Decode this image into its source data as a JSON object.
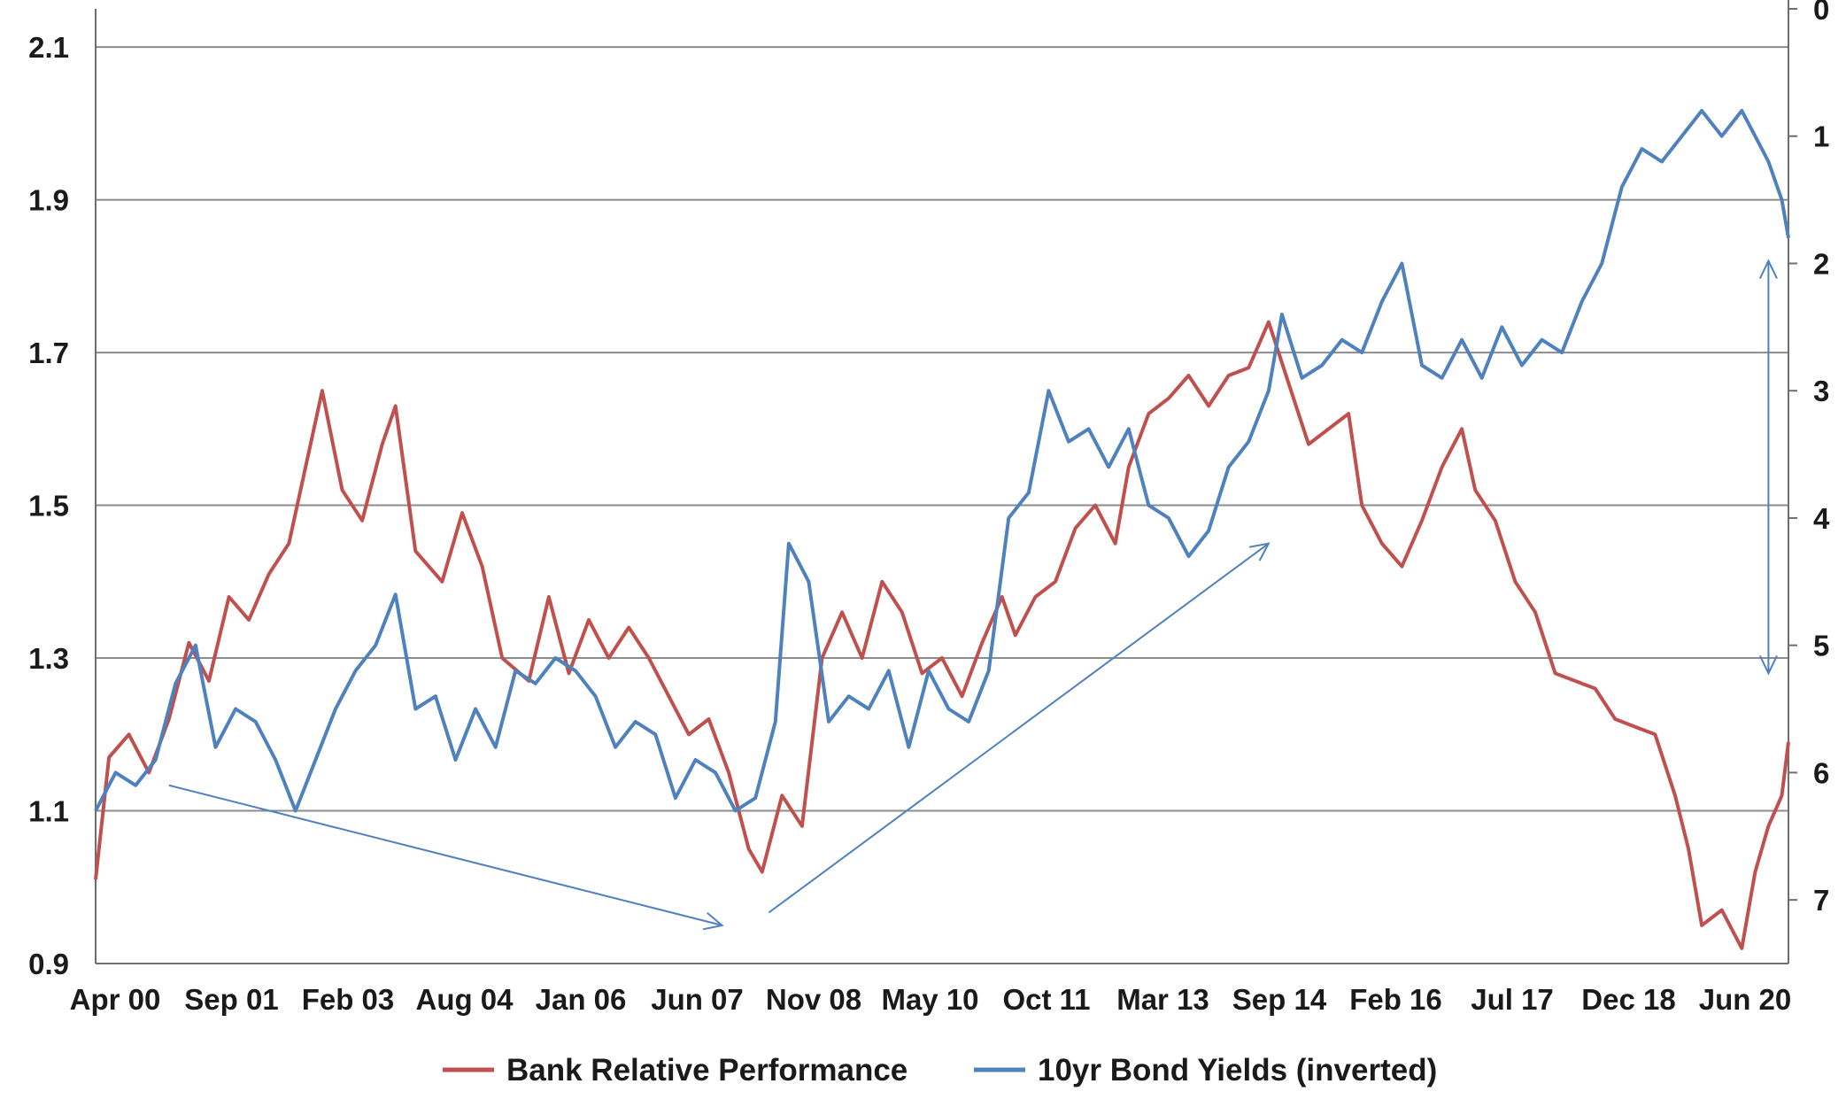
{
  "chart_data": {
    "type": "line",
    "title": "",
    "xlabel": "",
    "ylabel": "",
    "x_tick_labels": [
      "Apr 00",
      "Sep 01",
      "Feb 03",
      "Aug 04",
      "Jan 06",
      "Jun 07",
      "Nov 08",
      "May 10",
      "Oct 11",
      "Mar 13",
      "Sep 14",
      "Feb 16",
      "Jul 17",
      "Dec 18",
      "Jun 20"
    ],
    "xlim": [
      "2000-04",
      "2021-06"
    ],
    "y_left": {
      "ticks": [
        "0.9",
        "1.1",
        "1.3",
        "1.5",
        "1.7",
        "1.9",
        "2.1"
      ],
      "ylim": [
        0.9,
        2.15
      ]
    },
    "y_right": {
      "ticks": [
        "0",
        "1",
        "2",
        "3",
        "4",
        "5",
        "6",
        "7"
      ],
      "ylim": [
        0,
        7.5
      ],
      "inverted": true
    },
    "grid": true,
    "legend_position": "bottom",
    "series": [
      {
        "name": "Bank Relative Performance",
        "axis": "left",
        "color": "#c0504d",
        "points": [
          [
            "2000-04",
            1.01
          ],
          [
            "2000-06",
            1.17
          ],
          [
            "2000-09",
            1.2
          ],
          [
            "2000-12",
            1.15
          ],
          [
            "2001-03",
            1.22
          ],
          [
            "2001-06",
            1.32
          ],
          [
            "2001-09",
            1.27
          ],
          [
            "2001-12",
            1.38
          ],
          [
            "2002-03",
            1.35
          ],
          [
            "2002-06",
            1.41
          ],
          [
            "2002-09",
            1.45
          ],
          [
            "2002-12",
            1.57
          ],
          [
            "2003-02",
            1.65
          ],
          [
            "2003-05",
            1.52
          ],
          [
            "2003-08",
            1.48
          ],
          [
            "2003-11",
            1.58
          ],
          [
            "2004-01",
            1.63
          ],
          [
            "2004-04",
            1.44
          ],
          [
            "2004-08",
            1.4
          ],
          [
            "2004-11",
            1.49
          ],
          [
            "2005-02",
            1.42
          ],
          [
            "2005-05",
            1.3
          ],
          [
            "2005-09",
            1.27
          ],
          [
            "2005-12",
            1.38
          ],
          [
            "2006-03",
            1.28
          ],
          [
            "2006-06",
            1.35
          ],
          [
            "2006-09",
            1.3
          ],
          [
            "2006-12",
            1.34
          ],
          [
            "2007-03",
            1.3
          ],
          [
            "2007-06",
            1.25
          ],
          [
            "2007-09",
            1.2
          ],
          [
            "2007-12",
            1.22
          ],
          [
            "2008-03",
            1.15
          ],
          [
            "2008-06",
            1.05
          ],
          [
            "2008-08",
            1.02
          ],
          [
            "2008-11",
            1.12
          ],
          [
            "2009-02",
            1.08
          ],
          [
            "2009-05",
            1.3
          ],
          [
            "2009-08",
            1.36
          ],
          [
            "2009-11",
            1.3
          ],
          [
            "2010-02",
            1.4
          ],
          [
            "2010-05",
            1.36
          ],
          [
            "2010-08",
            1.28
          ],
          [
            "2010-11",
            1.3
          ],
          [
            "2011-02",
            1.25
          ],
          [
            "2011-05",
            1.32
          ],
          [
            "2011-08",
            1.38
          ],
          [
            "2011-10",
            1.33
          ],
          [
            "2012-01",
            1.38
          ],
          [
            "2012-04",
            1.4
          ],
          [
            "2012-07",
            1.47
          ],
          [
            "2012-10",
            1.5
          ],
          [
            "2013-01",
            1.45
          ],
          [
            "2013-03",
            1.55
          ],
          [
            "2013-06",
            1.62
          ],
          [
            "2013-09",
            1.64
          ],
          [
            "2013-12",
            1.67
          ],
          [
            "2014-03",
            1.63
          ],
          [
            "2014-06",
            1.67
          ],
          [
            "2014-09",
            1.68
          ],
          [
            "2014-12",
            1.74
          ],
          [
            "2015-03",
            1.66
          ],
          [
            "2015-06",
            1.58
          ],
          [
            "2015-09",
            1.6
          ],
          [
            "2015-12",
            1.62
          ],
          [
            "2016-02",
            1.5
          ],
          [
            "2016-05",
            1.45
          ],
          [
            "2016-08",
            1.42
          ],
          [
            "2016-11",
            1.48
          ],
          [
            "2017-02",
            1.55
          ],
          [
            "2017-05",
            1.6
          ],
          [
            "2017-07",
            1.52
          ],
          [
            "2017-10",
            1.48
          ],
          [
            "2018-01",
            1.4
          ],
          [
            "2018-04",
            1.36
          ],
          [
            "2018-07",
            1.28
          ],
          [
            "2018-10",
            1.27
          ],
          [
            "2019-01",
            1.26
          ],
          [
            "2019-04",
            1.22
          ],
          [
            "2019-07",
            1.21
          ],
          [
            "2019-10",
            1.2
          ],
          [
            "2020-01",
            1.12
          ],
          [
            "2020-03",
            1.05
          ],
          [
            "2020-05",
            0.95
          ],
          [
            "2020-08",
            0.97
          ],
          [
            "2020-11",
            0.92
          ],
          [
            "2021-01",
            1.02
          ],
          [
            "2021-03",
            1.08
          ],
          [
            "2021-05",
            1.12
          ],
          [
            "2021-06",
            1.19
          ]
        ]
      },
      {
        "name": "10yr Bond Yields (inverted)",
        "axis": "right",
        "color": "#4f81bd",
        "points": [
          [
            "2000-04",
            6.3
          ],
          [
            "2000-07",
            6.0
          ],
          [
            "2000-10",
            6.1
          ],
          [
            "2001-01",
            5.9
          ],
          [
            "2001-04",
            5.3
          ],
          [
            "2001-07",
            5.0
          ],
          [
            "2001-10",
            5.8
          ],
          [
            "2002-01",
            5.5
          ],
          [
            "2002-04",
            5.6
          ],
          [
            "2002-07",
            5.9
          ],
          [
            "2002-10",
            6.3
          ],
          [
            "2003-01",
            5.9
          ],
          [
            "2003-04",
            5.5
          ],
          [
            "2003-07",
            5.2
          ],
          [
            "2003-10",
            5.0
          ],
          [
            "2004-01",
            4.6
          ],
          [
            "2004-04",
            5.5
          ],
          [
            "2004-07",
            5.4
          ],
          [
            "2004-10",
            5.9
          ],
          [
            "2005-01",
            5.5
          ],
          [
            "2005-04",
            5.8
          ],
          [
            "2005-07",
            5.2
          ],
          [
            "2005-10",
            5.3
          ],
          [
            "2006-01",
            5.1
          ],
          [
            "2006-04",
            5.2
          ],
          [
            "2006-07",
            5.4
          ],
          [
            "2006-10",
            5.8
          ],
          [
            "2007-01",
            5.6
          ],
          [
            "2007-04",
            5.7
          ],
          [
            "2007-07",
            6.2
          ],
          [
            "2007-10",
            5.9
          ],
          [
            "2008-01",
            6.0
          ],
          [
            "2008-04",
            6.3
          ],
          [
            "2008-07",
            6.2
          ],
          [
            "2008-10",
            5.6
          ],
          [
            "2008-12",
            4.2
          ],
          [
            "2009-03",
            4.5
          ],
          [
            "2009-06",
            5.6
          ],
          [
            "2009-09",
            5.4
          ],
          [
            "2009-12",
            5.5
          ],
          [
            "2010-03",
            5.2
          ],
          [
            "2010-06",
            5.8
          ],
          [
            "2010-09",
            5.2
          ],
          [
            "2010-12",
            5.5
          ],
          [
            "2011-03",
            5.6
          ],
          [
            "2011-06",
            5.2
          ],
          [
            "2011-09",
            4.0
          ],
          [
            "2011-12",
            3.8
          ],
          [
            "2012-03",
            3.0
          ],
          [
            "2012-06",
            3.4
          ],
          [
            "2012-09",
            3.3
          ],
          [
            "2012-12",
            3.6
          ],
          [
            "2013-03",
            3.3
          ],
          [
            "2013-06",
            3.9
          ],
          [
            "2013-09",
            4.0
          ],
          [
            "2013-12",
            4.3
          ],
          [
            "2014-03",
            4.1
          ],
          [
            "2014-06",
            3.6
          ],
          [
            "2014-09",
            3.4
          ],
          [
            "2014-12",
            3.0
          ],
          [
            "2015-02",
            2.4
          ],
          [
            "2015-05",
            2.9
          ],
          [
            "2015-08",
            2.8
          ],
          [
            "2015-11",
            2.6
          ],
          [
            "2016-02",
            2.7
          ],
          [
            "2016-05",
            2.3
          ],
          [
            "2016-08",
            2.0
          ],
          [
            "2016-11",
            2.8
          ],
          [
            "2017-02",
            2.9
          ],
          [
            "2017-05",
            2.6
          ],
          [
            "2017-08",
            2.9
          ],
          [
            "2017-11",
            2.5
          ],
          [
            "2018-02",
            2.8
          ],
          [
            "2018-05",
            2.6
          ],
          [
            "2018-08",
            2.7
          ],
          [
            "2018-11",
            2.3
          ],
          [
            "2019-02",
            2.0
          ],
          [
            "2019-05",
            1.4
          ],
          [
            "2019-08",
            1.1
          ],
          [
            "2019-11",
            1.2
          ],
          [
            "2020-02",
            1.0
          ],
          [
            "2020-05",
            0.8
          ],
          [
            "2020-08",
            1.0
          ],
          [
            "2020-11",
            0.8
          ],
          [
            "2021-01",
            1.0
          ],
          [
            "2021-03",
            1.2
          ],
          [
            "2021-05",
            1.5
          ],
          [
            "2021-06",
            1.8
          ]
        ]
      }
    ],
    "annotations": [
      {
        "type": "arrow",
        "axis": "right",
        "from": [
          "2001-03",
          6.1
        ],
        "to": [
          "2008-02",
          7.2
        ]
      },
      {
        "type": "arrow",
        "axis": "right",
        "from": [
          "2008-09",
          7.1
        ],
        "to": [
          "2014-12",
          4.2
        ]
      },
      {
        "type": "double-arrow",
        "axis": "left",
        "x": "2021-03",
        "from": 1.82,
        "to": 1.28
      }
    ]
  }
}
